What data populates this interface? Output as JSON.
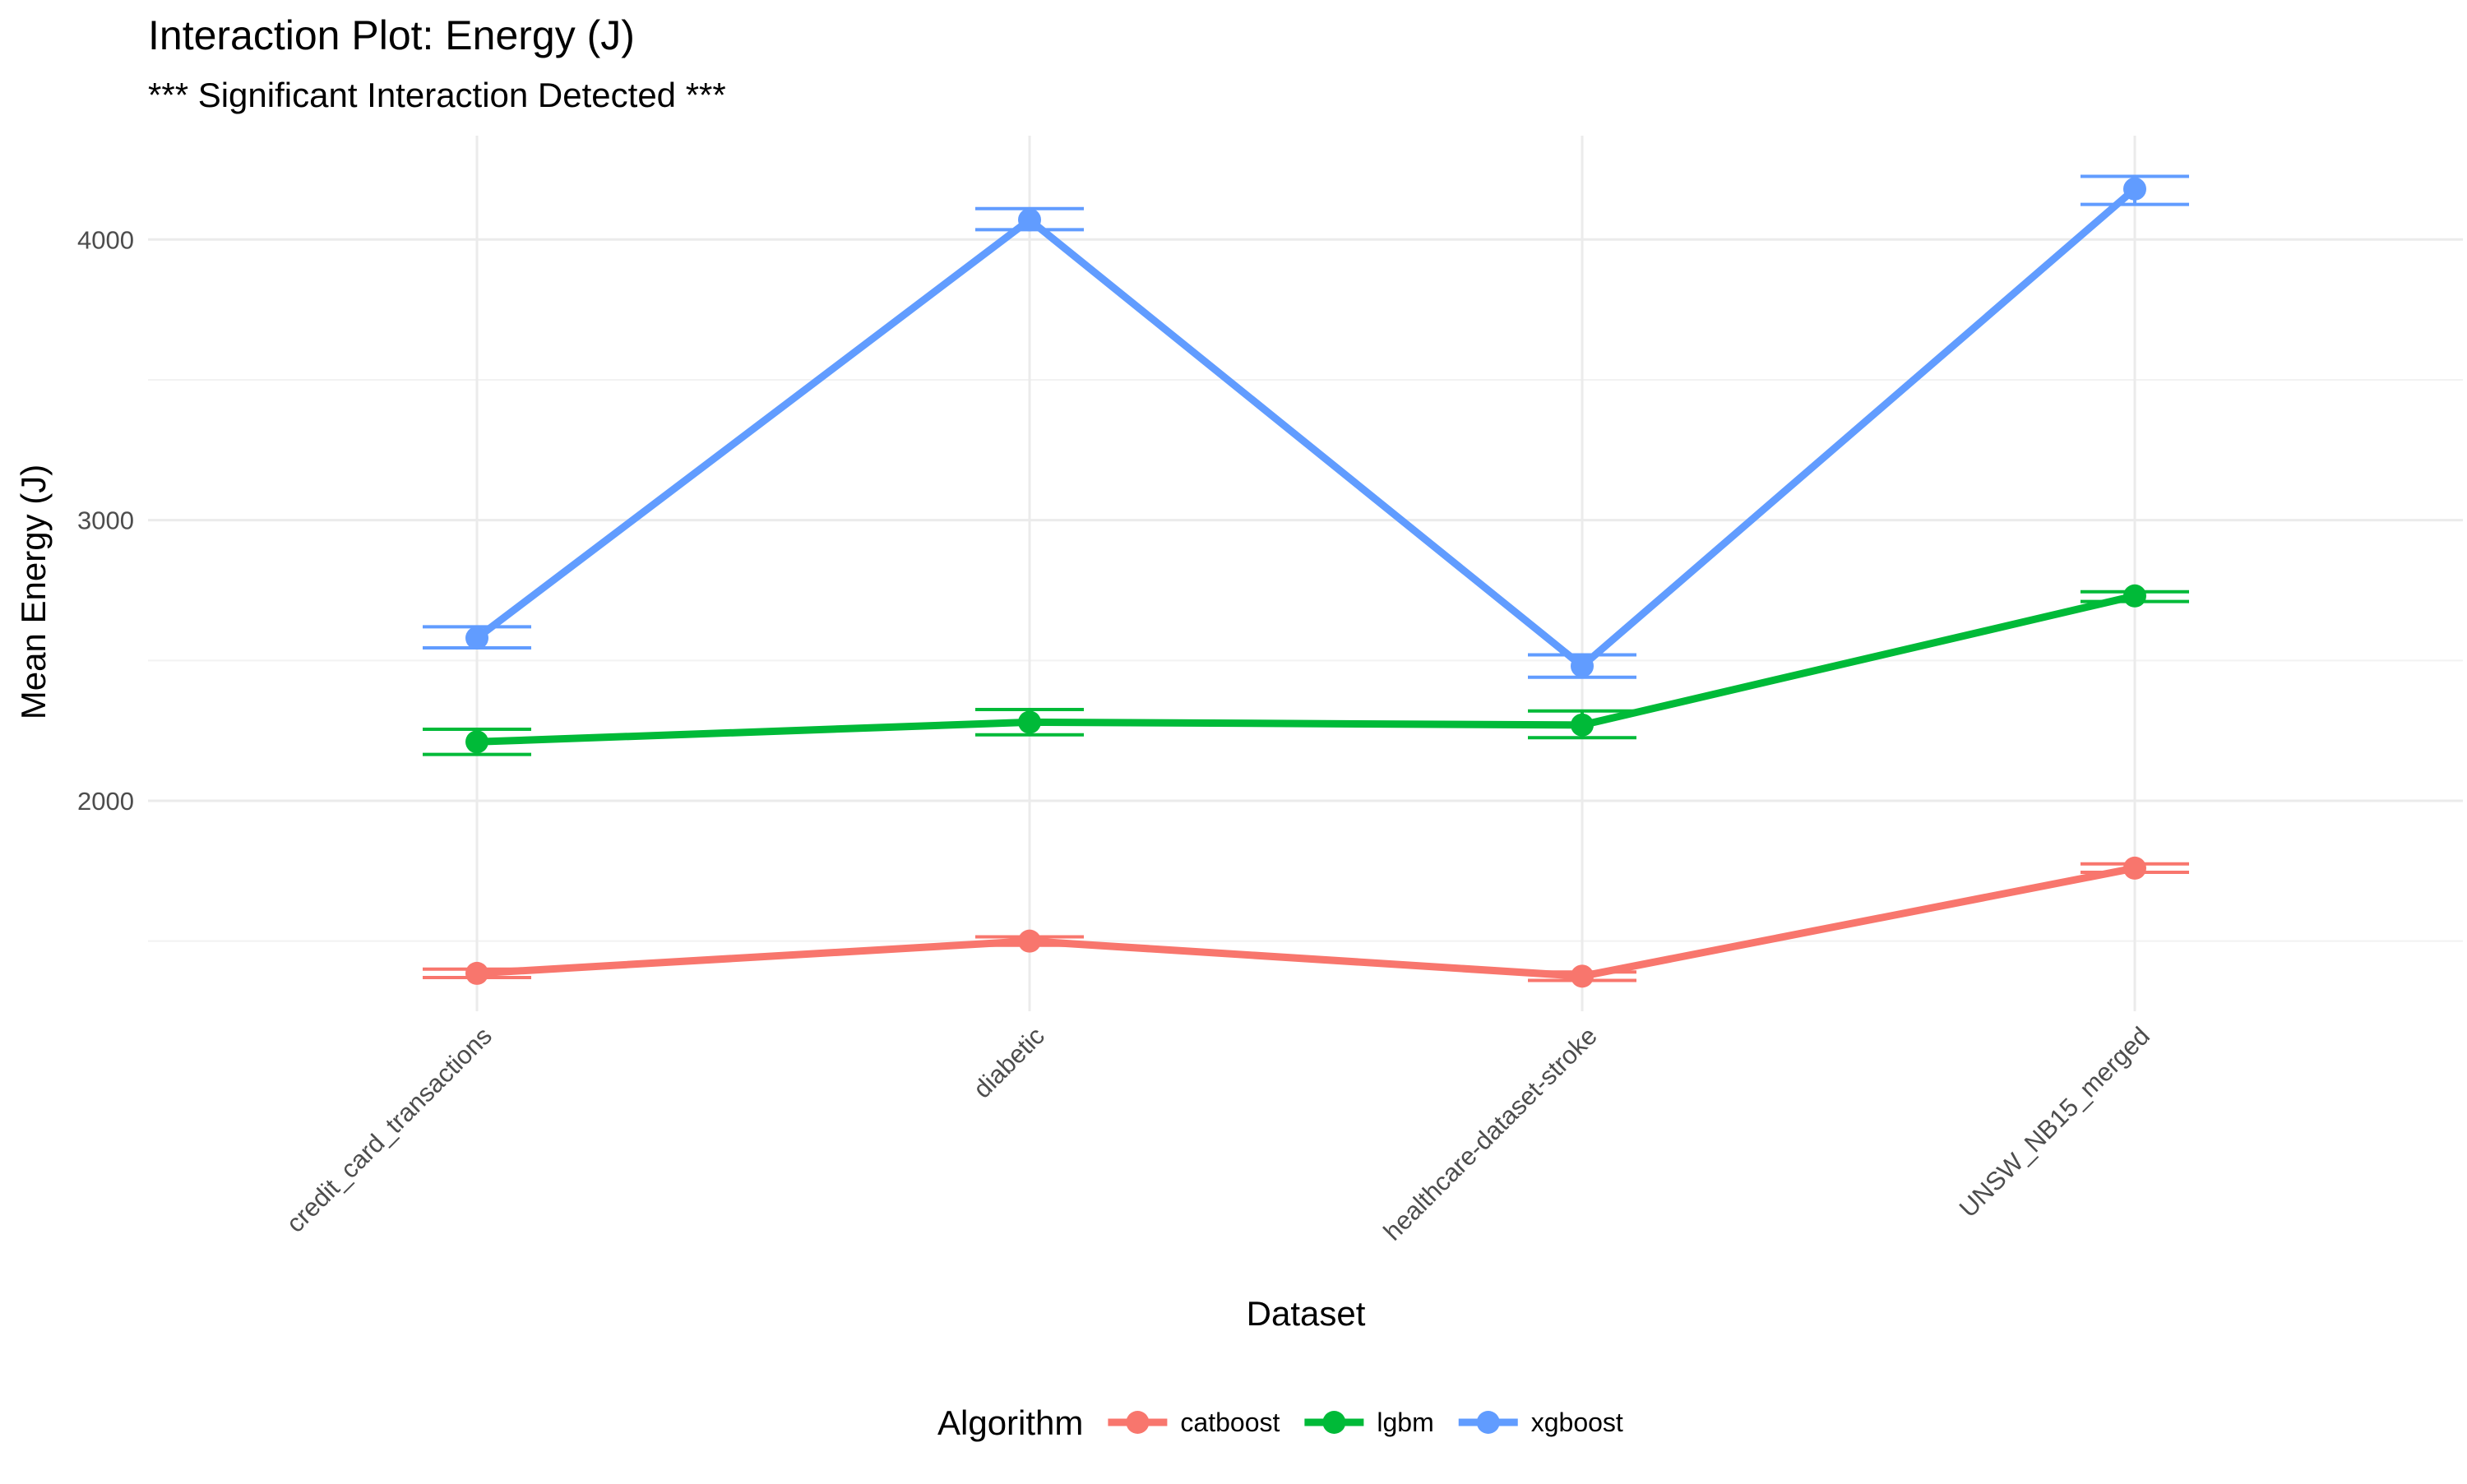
{
  "chart_data": {
    "type": "line",
    "title": "Interaction Plot: Energy (J)",
    "subtitle": "*** Significant Interaction Detected ***",
    "xlabel": "Dataset",
    "ylabel": "Mean Energy (J)",
    "categories": [
      "credit_card_transactions",
      "diabetic",
      "healthcare-dataset-stroke",
      "UNSW_NB15_merged"
    ],
    "ylim": [
      1250,
      4370
    ],
    "yticks": [
      2000,
      3000,
      4000
    ],
    "grid": true,
    "legend": {
      "title": "Algorithm",
      "position": "bottom"
    },
    "series": [
      {
        "name": "catboost",
        "color": "#F8766D",
        "values": [
          1385,
          1500,
          1375,
          1760
        ],
        "error_low": [
          1370,
          1485,
          1360,
          1745
        ],
        "error_high": [
          1400,
          1515,
          1390,
          1775
        ]
      },
      {
        "name": "lgbm",
        "color": "#00BA38",
        "values": [
          2210,
          2280,
          2270,
          2730
        ],
        "error_low": [
          2165,
          2235,
          2225,
          2710
        ],
        "error_high": [
          2255,
          2325,
          2320,
          2745
        ]
      },
      {
        "name": "xgboost",
        "color": "#619CFF",
        "values": [
          2580,
          4070,
          2480,
          4180
        ],
        "error_low": [
          2545,
          4035,
          2440,
          4125
        ],
        "error_high": [
          2620,
          4110,
          2520,
          4225
        ]
      }
    ]
  }
}
